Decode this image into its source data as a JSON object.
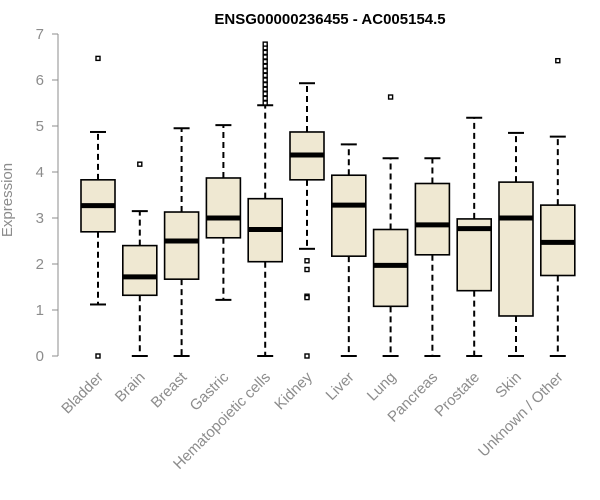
{
  "chart_data": {
    "type": "boxplot",
    "title": "ENSG00000236455 - AC005154.5",
    "ylabel": "Expression",
    "xlabel": "",
    "ylim": [
      0,
      7
    ],
    "yticks": [
      0,
      1,
      2,
      3,
      4,
      5,
      6,
      7
    ],
    "box_fill": "#efe8d2",
    "categories": [
      "Bladder",
      "Brain",
      "Breast",
      "Gastric",
      "Hematopoietic cells",
      "Kidney",
      "Liver",
      "Lung",
      "Pancreas",
      "Prostate",
      "Skin",
      "Unknown / Other"
    ],
    "boxes": [
      {
        "whisker_low": 1.12,
        "q1": 2.7,
        "median": 3.27,
        "q3": 3.83,
        "whisker_high": 4.87,
        "outliers": [
          6.47,
          0.0
        ]
      },
      {
        "whisker_low": 0.0,
        "q1": 1.32,
        "median": 1.72,
        "q3": 2.4,
        "whisker_high": 3.15,
        "outliers": [
          4.17
        ]
      },
      {
        "whisker_low": 0.0,
        "q1": 1.67,
        "median": 2.5,
        "q3": 3.13,
        "whisker_high": 4.95,
        "outliers": []
      },
      {
        "whisker_low": 1.22,
        "q1": 2.57,
        "median": 3.0,
        "q3": 3.87,
        "whisker_high": 5.02,
        "outliers": []
      },
      {
        "whisker_low": 0.0,
        "q1": 2.05,
        "median": 2.75,
        "q3": 3.42,
        "whisker_high": 5.45,
        "outliers": [
          5.5,
          5.6,
          5.7,
          5.8,
          5.9,
          6.0,
          6.1,
          6.2,
          6.3,
          6.4,
          6.5,
          6.6,
          6.7,
          6.78
        ]
      },
      {
        "whisker_low": 2.33,
        "q1": 3.83,
        "median": 4.37,
        "q3": 4.87,
        "whisker_high": 5.93,
        "outliers": [
          2.07,
          1.88,
          1.3,
          1.27,
          0.0
        ]
      },
      {
        "whisker_low": 0.0,
        "q1": 2.17,
        "median": 3.28,
        "q3": 3.93,
        "whisker_high": 4.6,
        "outliers": []
      },
      {
        "whisker_low": 0.0,
        "q1": 1.08,
        "median": 1.97,
        "q3": 2.75,
        "whisker_high": 4.3,
        "outliers": [
          5.63
        ]
      },
      {
        "whisker_low": 0.0,
        "q1": 2.2,
        "median": 2.85,
        "q3": 3.75,
        "whisker_high": 4.3,
        "outliers": []
      },
      {
        "whisker_low": 0.0,
        "q1": 1.42,
        "median": 2.77,
        "q3": 2.98,
        "whisker_high": 5.18,
        "outliers": []
      },
      {
        "whisker_low": 0.0,
        "q1": 0.87,
        "median": 3.0,
        "q3": 3.78,
        "whisker_high": 4.85,
        "outliers": []
      },
      {
        "whisker_low": 0.0,
        "q1": 1.75,
        "median": 2.47,
        "q3": 3.28,
        "whisker_high": 4.77,
        "outliers": [
          6.42
        ]
      }
    ]
  }
}
